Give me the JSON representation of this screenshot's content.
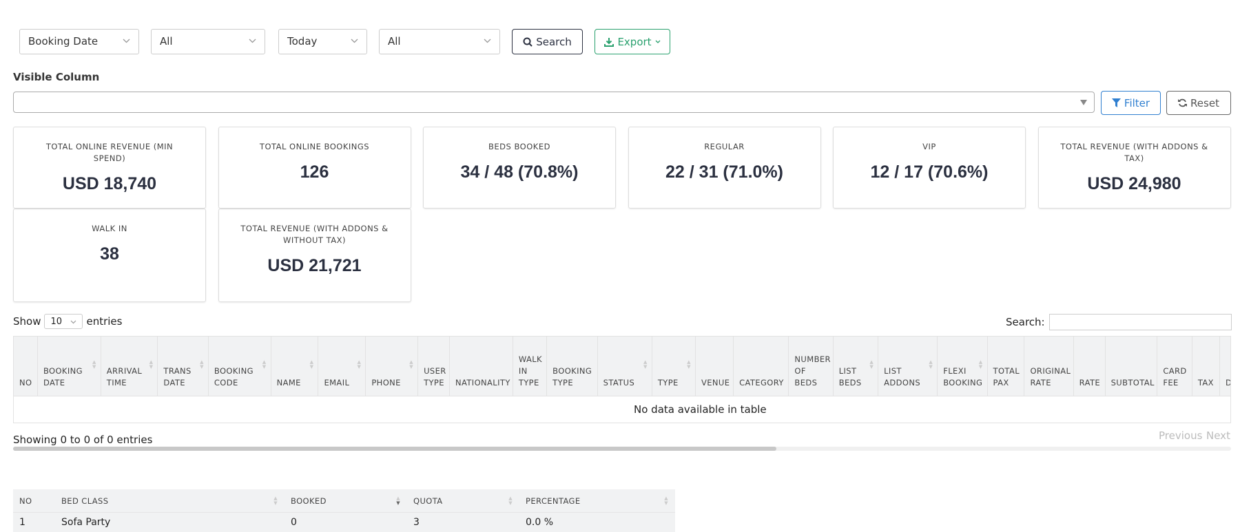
{
  "toolbar": {
    "filters": [
      "Booking Date",
      "All",
      "Today",
      "All"
    ],
    "search_button": "Search",
    "export_button": "Export"
  },
  "visible_column": {
    "label": "Visible Column",
    "filter_button": "Filter",
    "reset_button": "Reset"
  },
  "stats": [
    {
      "label": "TOTAL ONLINE REVENUE (MIN SPEND)",
      "value": "USD 18,740"
    },
    {
      "label": "TOTAL ONLINE BOOKINGS",
      "value": "126"
    },
    {
      "label": "BEDS BOOKED",
      "value": "34 / 48 (70.8%)"
    },
    {
      "label": "REGULAR",
      "value": "22 / 31 (71.0%)"
    },
    {
      "label": "VIP",
      "value": "12 / 17 (70.6%)"
    },
    {
      "label": "TOTAL REVENUE (WITH ADDONS & TAX)",
      "value": "USD 24,980"
    },
    {
      "label": "WALK IN",
      "value": "38"
    },
    {
      "label": "TOTAL REVENUE (WITH ADDONS & WITHOUT TAX)",
      "value": "USD 21,721"
    }
  ],
  "bookings_table": {
    "show": "Show",
    "page_length": "10",
    "entries": "entries",
    "search_label": "Search:",
    "columns": [
      "NO",
      "BOOKING DATE",
      "ARRIVAL TIME",
      "TRANS DATE",
      "BOOKING CODE",
      "NAME",
      "EMAIL",
      "PHONE",
      "USER TYPE",
      "NATIONALITY",
      "WALK IN TYPE",
      "BOOKING TYPE",
      "STATUS",
      "TYPE",
      "VENUE",
      "CATEGORY",
      "NUMBER OF BEDS",
      "LIST BEDS",
      "LIST ADDONS",
      "FLEXI BOOKING",
      "TOTAL PAX",
      "ORIGINAL RATE",
      "RATE",
      "SUBTOTAL",
      "CARD FEE",
      "TAX",
      "D"
    ],
    "empty_message": "No data available in table",
    "info": "Showing 0 to 0 of 0 entries",
    "previous": "Previous",
    "next": "Next"
  },
  "bed_table": {
    "columns": [
      "NO",
      "BED CLASS",
      "BOOKED",
      "QUOTA",
      "PERCENTAGE"
    ],
    "rows": [
      [
        "1",
        "Sofa Party",
        "0",
        "3",
        "0.0 %"
      ]
    ]
  }
}
